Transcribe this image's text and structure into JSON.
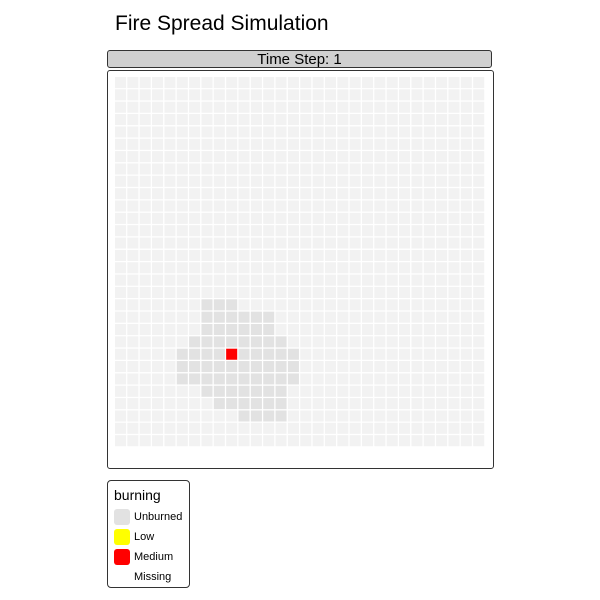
{
  "chart_data": {
    "type": "heatmap",
    "title": "Fire Spread Simulation",
    "facet_label": "Time Step: 1",
    "legend": {
      "title": "burning",
      "items": [
        {
          "label": "Unburned",
          "color": "#e2e2e2"
        },
        {
          "label": "Low",
          "color": "#ffff00"
        },
        {
          "label": "Medium",
          "color": "#ff0000"
        },
        {
          "label": "Missing",
          "color": null
        }
      ]
    },
    "grid": {
      "cols": 30,
      "rows": 30,
      "background_color": "#f2f2f2",
      "unburned_rows": [
        {
          "row": 18,
          "cols": [
            7,
            8,
            9
          ]
        },
        {
          "row": 19,
          "cols": [
            7,
            8,
            9,
            10,
            11,
            12
          ]
        },
        {
          "row": 20,
          "cols": [
            7,
            8,
            9,
            10,
            11,
            12
          ]
        },
        {
          "row": 21,
          "cols": [
            6,
            7,
            8,
            9,
            10,
            11,
            12,
            13
          ]
        },
        {
          "row": 22,
          "cols": [
            5,
            6,
            7,
            8,
            9,
            10,
            11,
            12,
            13,
            14
          ]
        },
        {
          "row": 23,
          "cols": [
            5,
            6,
            7,
            8,
            9,
            10,
            11,
            12,
            13,
            14
          ]
        },
        {
          "row": 24,
          "cols": [
            5,
            6,
            7,
            8,
            9,
            10,
            11,
            12,
            13,
            14
          ]
        },
        {
          "row": 25,
          "cols": [
            7,
            8,
            9,
            10,
            11,
            12,
            13
          ]
        },
        {
          "row": 26,
          "cols": [
            8,
            9,
            10,
            11,
            12,
            13
          ]
        },
        {
          "row": 27,
          "cols": [
            10,
            11,
            12,
            13
          ]
        }
      ],
      "medium_cells": [
        {
          "row": 22,
          "col": 9
        }
      ],
      "low_cells": []
    }
  }
}
